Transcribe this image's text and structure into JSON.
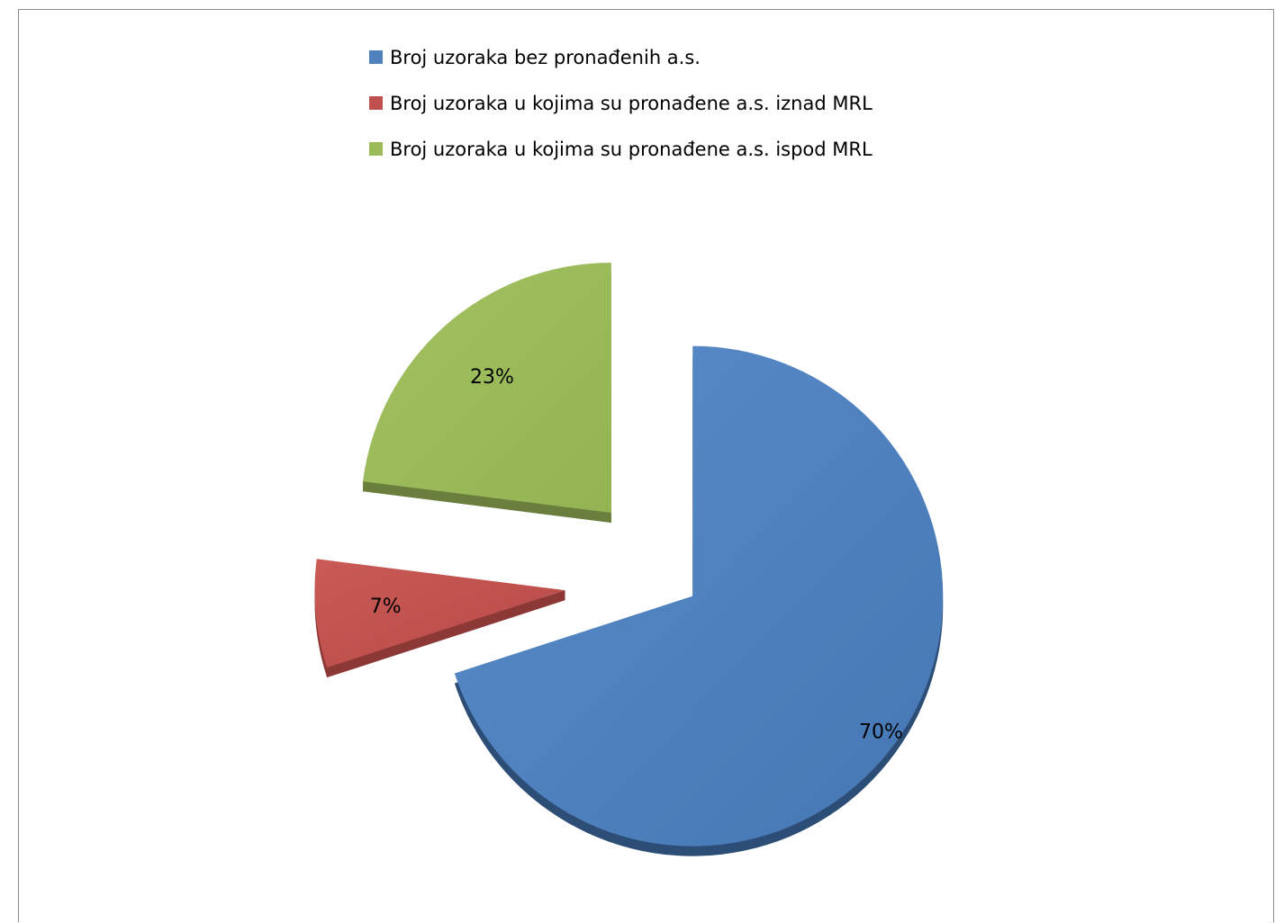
{
  "chart_data": {
    "type": "pie",
    "categories": [
      "Broj uzoraka bez pronađenih a.s.",
      "Broj uzoraka u kojima su pronađene a.s. iznad MRL",
      "Broj uzoraka u kojima su pronađene a.s. ispod MRL"
    ],
    "values": [
      70,
      7,
      23
    ],
    "data_labels": [
      "70%",
      "7%",
      "23%"
    ],
    "exploded": true,
    "style": "3d",
    "legend_position": "top",
    "colors": [
      "#4f81bd",
      "#c0504d",
      "#9bbb59"
    ],
    "side_colors": [
      "#2c4d75",
      "#8c3836",
      "#6a7f3d"
    ]
  }
}
